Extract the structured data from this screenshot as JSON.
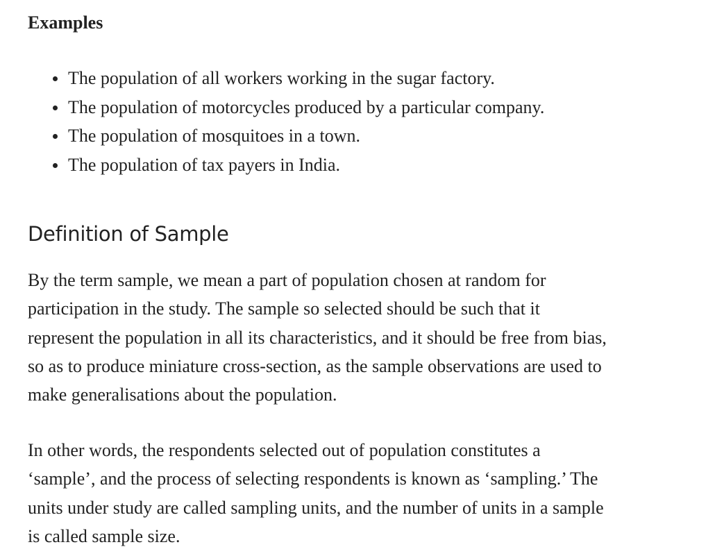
{
  "examples": {
    "heading": "Examples",
    "items": [
      "The population of all workers working in the sugar factory.",
      "The population of motorcycles produced by a particular company.",
      "The population of mosquitoes in a town.",
      "The population of tax payers in India."
    ]
  },
  "section": {
    "title": "Definition of Sample",
    "paragraph_1": [
      "By the term sample, we mean a part of population chosen at random for",
      "participation in the study. The sample so selected should be such that it",
      "represent the population in all its characteristics, and it should be free from bias,",
      "so as to produce miniature cross-section, as the sample observations are used to",
      "make generalisations about the population."
    ],
    "paragraph_2": [
      "In other words, the respondents selected out of population constitutes a",
      "‘sample’, and the process of selecting respondents is known as ‘sampling.’ The",
      "units under study are called sampling units, and the number of units in a sample",
      "is called sample size."
    ]
  }
}
